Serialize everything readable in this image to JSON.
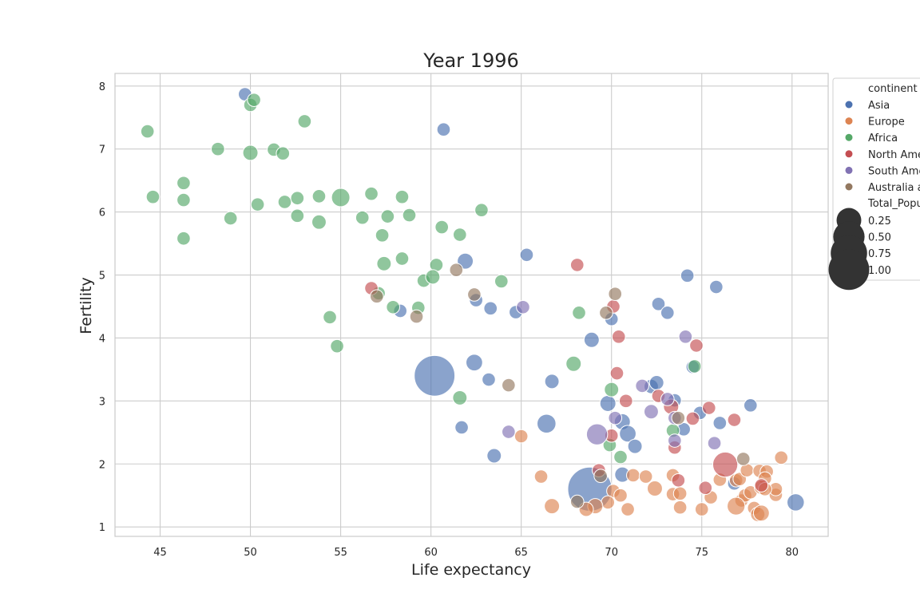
{
  "chart_data": {
    "type": "scatter",
    "title": "Year 1996",
    "xlabel": "Life expectancy",
    "ylabel": "Fertility",
    "xlim": [
      42.5,
      82.0
    ],
    "ylim": [
      0.85,
      8.2
    ],
    "xticks": [
      45,
      50,
      55,
      60,
      65,
      70,
      75,
      80
    ],
    "yticks": [
      1,
      2,
      3,
      4,
      5,
      6,
      7,
      8
    ],
    "grid": true,
    "legend_position": "right (outside, clipped)",
    "legend": {
      "hue_title": "continent",
      "size_title": "Total_Popu",
      "hue_entries": [
        {
          "name": "Asia",
          "color": "#4c72b0"
        },
        {
          "name": "Europe",
          "color": "#dd8452"
        },
        {
          "name": "Africa",
          "color": "#55a868"
        },
        {
          "name": "North Ame",
          "color": "#c44e52"
        },
        {
          "name": "South Ame",
          "color": "#8172b3"
        },
        {
          "name": "Australia a",
          "color": "#937860"
        }
      ],
      "size_entries": [
        {
          "label": "0.25",
          "value": 0.25
        },
        {
          "label": "0.50",
          "value": 0.5
        },
        {
          "label": "0.75",
          "value": 0.75
        },
        {
          "label": "1.00",
          "value": 1.0
        }
      ]
    },
    "series": [
      {
        "name": "Asia",
        "color": "#4c72b0",
        "points": [
          [
            49.7,
            7.87,
            0.02
          ],
          [
            60.7,
            7.31,
            0.02
          ],
          [
            61.9,
            5.22,
            0.05
          ],
          [
            65.3,
            5.32,
            0.02
          ],
          [
            74.2,
            4.99,
            0.02
          ],
          [
            75.8,
            4.81,
            0.02
          ],
          [
            72.6,
            4.54,
            0.02
          ],
          [
            73.1,
            4.4,
            0.02
          ],
          [
            62.5,
            4.6,
            0.02
          ],
          [
            63.3,
            4.47,
            0.02
          ],
          [
            64.7,
            4.41,
            0.02
          ],
          [
            58.3,
            4.43,
            0.02
          ],
          [
            70,
            4.3,
            0.02
          ],
          [
            68.9,
            3.97,
            0.04
          ],
          [
            74.5,
            3.54,
            0.02
          ],
          [
            60.2,
            3.4,
            1.0
          ],
          [
            62.4,
            3.61,
            0.06
          ],
          [
            63.2,
            3.34,
            0.02
          ],
          [
            66.7,
            3.31,
            0.03
          ],
          [
            72.2,
            3.23,
            0.03
          ],
          [
            72.5,
            3.29,
            0.03
          ],
          [
            73.5,
            3.01,
            0.02
          ],
          [
            69.8,
            2.96,
            0.05
          ],
          [
            74.9,
            2.81,
            0.02
          ],
          [
            77.7,
            2.93,
            0.02
          ],
          [
            76,
            2.65,
            0.02
          ],
          [
            61.7,
            2.58,
            0.02
          ],
          [
            66.4,
            2.64,
            0.1
          ],
          [
            70.6,
            2.67,
            0.05
          ],
          [
            70.9,
            2.48,
            0.06
          ],
          [
            74,
            2.55,
            0.02
          ],
          [
            71.3,
            2.28,
            0.03
          ],
          [
            63.5,
            2.13,
            0.03
          ],
          [
            70.6,
            1.83,
            0.04
          ],
          [
            68.8,
            1.6,
            1.23
          ],
          [
            76.8,
            1.69,
            0.02
          ],
          [
            80.2,
            1.39,
            0.07
          ]
        ]
      },
      {
        "name": "Europe",
        "color": "#dd8452",
        "points": [
          [
            65,
            2.44,
            0.02
          ],
          [
            79.4,
            2.1,
            0.02
          ],
          [
            76.9,
            1.74,
            0.02
          ],
          [
            77.1,
            1.76,
            0.02
          ],
          [
            77.5,
            1.9,
            0.02
          ],
          [
            78.2,
            1.89,
            0.02
          ],
          [
            78.6,
            1.88,
            0.02
          ],
          [
            78.5,
            1.77,
            0.02
          ],
          [
            76,
            1.75,
            0.02
          ],
          [
            71.2,
            1.82,
            0.02
          ],
          [
            71.9,
            1.8,
            0.02
          ],
          [
            73.4,
            1.82,
            0.02
          ],
          [
            66.1,
            1.8,
            0.02
          ],
          [
            72.4,
            1.61,
            0.04
          ],
          [
            70.1,
            1.57,
            0.02
          ],
          [
            70.5,
            1.5,
            0.02
          ],
          [
            73.4,
            1.52,
            0.02
          ],
          [
            73.8,
            1.53,
            0.02
          ],
          [
            75.5,
            1.47,
            0.02
          ],
          [
            77.2,
            1.42,
            0.02
          ],
          [
            77.4,
            1.5,
            0.02
          ],
          [
            77.7,
            1.55,
            0.02
          ],
          [
            79.1,
            1.51,
            0.02
          ],
          [
            79.1,
            1.6,
            0.02
          ],
          [
            78.3,
            1.63,
            0.03
          ],
          [
            78.5,
            1.6,
            0.02
          ],
          [
            76.9,
            1.33,
            0.08
          ],
          [
            77.9,
            1.3,
            0.02
          ],
          [
            66.7,
            1.33,
            0.04
          ],
          [
            69.8,
            1.39,
            0.02
          ],
          [
            69.1,
            1.33,
            0.04
          ],
          [
            68.6,
            1.28,
            0.03
          ],
          [
            70.9,
            1.28,
            0.02
          ],
          [
            73.8,
            1.31,
            0.02
          ],
          [
            75,
            1.28,
            0.02
          ],
          [
            78.1,
            1.2,
            0.03
          ],
          [
            78.3,
            1.22,
            0.05
          ]
        ]
      },
      {
        "name": "Africa",
        "color": "#55a868",
        "points": [
          [
            50,
            7.7,
            0.02
          ],
          [
            50.2,
            7.78,
            0.02
          ],
          [
            44.3,
            7.28,
            0.02
          ],
          [
            53,
            7.44,
            0.02
          ],
          [
            48.2,
            7,
            0.02
          ],
          [
            50,
            6.94,
            0.04
          ],
          [
            51.3,
            6.99,
            0.02
          ],
          [
            51.8,
            6.93,
            0.02
          ],
          [
            46.3,
            6.46,
            0.02
          ],
          [
            44.6,
            6.24,
            0.02
          ],
          [
            46.3,
            6.19,
            0.02
          ],
          [
            50.4,
            6.12,
            0.02
          ],
          [
            51.9,
            6.16,
            0.02
          ],
          [
            52.6,
            6.22,
            0.02
          ],
          [
            53.8,
            6.25,
            0.02
          ],
          [
            55,
            6.23,
            0.09
          ],
          [
            56.7,
            6.29,
            0.02
          ],
          [
            58.4,
            6.24,
            0.02
          ],
          [
            48.9,
            5.9,
            0.02
          ],
          [
            52.6,
            5.94,
            0.02
          ],
          [
            53.8,
            5.84,
            0.03
          ],
          [
            56.2,
            5.91,
            0.02
          ],
          [
            57.6,
            5.93,
            0.02
          ],
          [
            58.8,
            5.95,
            0.02
          ],
          [
            62.8,
            6.03,
            0.02
          ],
          [
            46.3,
            5.58,
            0.02
          ],
          [
            57.3,
            5.63,
            0.02
          ],
          [
            60.6,
            5.76,
            0.02
          ],
          [
            61.6,
            5.64,
            0.02
          ],
          [
            57.4,
            5.18,
            0.03
          ],
          [
            58.4,
            5.26,
            0.02
          ],
          [
            60.3,
            5.16,
            0.02
          ],
          [
            59.6,
            4.91,
            0.02
          ],
          [
            60.1,
            4.97,
            0.03
          ],
          [
            63.9,
            4.9,
            0.02
          ],
          [
            57.1,
            4.71,
            0.02
          ],
          [
            57.9,
            4.49,
            0.02
          ],
          [
            59.3,
            4.48,
            0.02
          ],
          [
            54.4,
            4.33,
            0.02
          ],
          [
            68.2,
            4.4,
            0.02
          ],
          [
            54.8,
            3.87,
            0.02
          ],
          [
            67.9,
            3.59,
            0.04
          ],
          [
            74.6,
            3.55,
            0.02
          ],
          [
            61.6,
            3.05,
            0.03
          ],
          [
            70,
            3.18,
            0.03
          ],
          [
            73.4,
            2.53,
            0.02
          ],
          [
            69.9,
            2.3,
            0.02
          ],
          [
            70.5,
            2.11,
            0.02
          ]
        ]
      },
      {
        "name": "North Ame",
        "color": "#c44e52",
        "points": [
          [
            68.1,
            5.16,
            0.02
          ],
          [
            56.7,
            4.79,
            0.02
          ],
          [
            70.1,
            4.5,
            0.02
          ],
          [
            70.4,
            4.02,
            0.02
          ],
          [
            74.7,
            3.88,
            0.02
          ],
          [
            70.3,
            3.44,
            0.02
          ],
          [
            72.6,
            3.08,
            0.02
          ],
          [
            70.8,
            3,
            0.02
          ],
          [
            75.4,
            2.89,
            0.02
          ],
          [
            73.3,
            2.91,
            0.04
          ],
          [
            76.8,
            2.7,
            0.02
          ],
          [
            74.5,
            2.72,
            0.02
          ],
          [
            70,
            2.45,
            0.02
          ],
          [
            73.5,
            2.26,
            0.02
          ],
          [
            76.3,
            1.99,
            0.26
          ],
          [
            69.3,
            1.9,
            0.02
          ],
          [
            73.7,
            1.74,
            0.02
          ],
          [
            75.2,
            1.62,
            0.02
          ],
          [
            78.3,
            1.66,
            0.02
          ]
        ]
      },
      {
        "name": "South Ame",
        "color": "#8172b3",
        "points": [
          [
            65.1,
            4.49,
            0.02
          ],
          [
            74.1,
            4.02,
            0.02
          ],
          [
            71.7,
            3.24,
            0.02
          ],
          [
            73.1,
            3.03,
            0.02
          ],
          [
            72.2,
            2.83,
            0.03
          ],
          [
            73.5,
            2.73,
            0.02
          ],
          [
            70.2,
            2.73,
            0.02
          ],
          [
            64.3,
            2.51,
            0.02
          ],
          [
            69.2,
            2.47,
            0.15
          ],
          [
            73.5,
            2.37,
            0.02
          ],
          [
            75.7,
            2.33,
            0.02
          ]
        ]
      },
      {
        "name": "Australia a",
        "color": "#937860",
        "points": [
          [
            61.4,
            5.08,
            0.02
          ],
          [
            70.2,
            4.7,
            0.02
          ],
          [
            62.4,
            4.69,
            0.02
          ],
          [
            57,
            4.66,
            0.02
          ],
          [
            69.7,
            4.4,
            0.02
          ],
          [
            59.2,
            4.34,
            0.02
          ],
          [
            64.3,
            3.25,
            0.02
          ],
          [
            73.7,
            2.73,
            0.02
          ],
          [
            77.3,
            2.08,
            0.02
          ],
          [
            69.4,
            1.81,
            0.02
          ],
          [
            68.1,
            1.4,
            0.02
          ]
        ]
      }
    ]
  }
}
